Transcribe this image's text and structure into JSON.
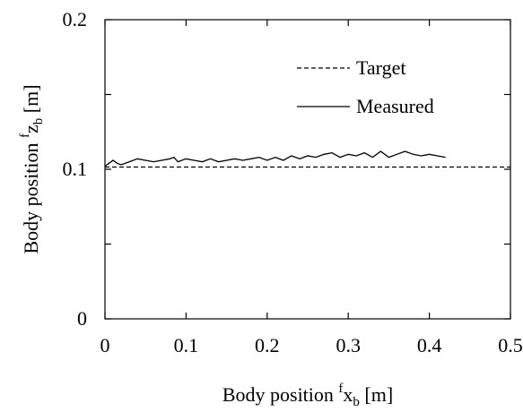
{
  "chart_data": {
    "type": "line",
    "xlabel": {
      "main": "Body position ",
      "sup": "f",
      "var": "x",
      "sub": "b",
      "unit": " [m]"
    },
    "ylabel": {
      "main": "Body position ",
      "sup": "f",
      "var": "z",
      "sub": "b",
      "unit": " [m]"
    },
    "xlim": [
      0,
      0.5
    ],
    "ylim": [
      0,
      0.2
    ],
    "x_ticks": [
      0,
      0.1,
      0.2,
      0.3,
      0.4,
      0.5
    ],
    "x_tick_labels": [
      "0",
      "0.1",
      "0.2",
      "0.3",
      "0.4",
      "0.5"
    ],
    "y_ticks": [
      0,
      0.1,
      0.2
    ],
    "y_tick_labels": [
      "0",
      "0.1",
      "0.2"
    ],
    "y_minor_ticks": [
      0.05,
      0.15
    ],
    "grid": false,
    "legend_position": "top-right",
    "series": [
      {
        "name": "Target",
        "style": "dashed",
        "x": [
          0,
          0.5
        ],
        "y": [
          0.1015,
          0.1015
        ]
      },
      {
        "name": "Measured",
        "style": "solid",
        "x": [
          0.0,
          0.005,
          0.01,
          0.015,
          0.02,
          0.03,
          0.04,
          0.05,
          0.06,
          0.07,
          0.08,
          0.085,
          0.09,
          0.1,
          0.11,
          0.12,
          0.13,
          0.14,
          0.15,
          0.16,
          0.17,
          0.18,
          0.19,
          0.2,
          0.21,
          0.22,
          0.23,
          0.24,
          0.25,
          0.26,
          0.27,
          0.28,
          0.29,
          0.3,
          0.31,
          0.32,
          0.33,
          0.34,
          0.35,
          0.36,
          0.37,
          0.38,
          0.39,
          0.4,
          0.41,
          0.42
        ],
        "y": [
          0.102,
          0.104,
          0.106,
          0.104,
          0.103,
          0.105,
          0.107,
          0.106,
          0.105,
          0.106,
          0.107,
          0.108,
          0.105,
          0.107,
          0.106,
          0.105,
          0.107,
          0.105,
          0.106,
          0.107,
          0.106,
          0.107,
          0.108,
          0.106,
          0.108,
          0.106,
          0.109,
          0.107,
          0.109,
          0.108,
          0.11,
          0.111,
          0.108,
          0.11,
          0.109,
          0.111,
          0.108,
          0.112,
          0.108,
          0.11,
          0.112,
          0.11,
          0.109,
          0.11,
          0.109,
          0.108
        ]
      }
    ]
  }
}
